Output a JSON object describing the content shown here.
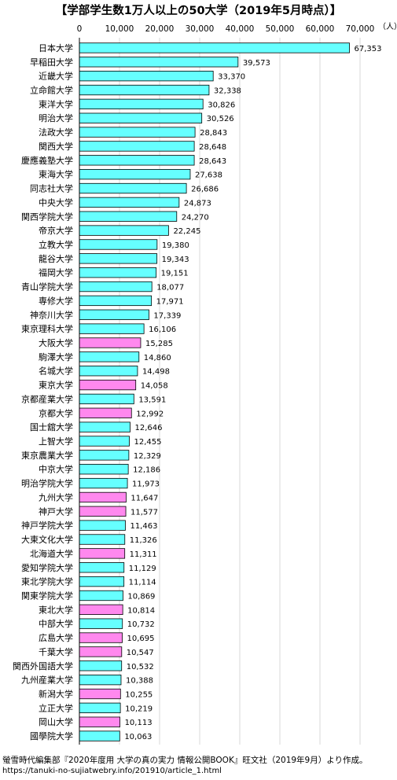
{
  "title": "【学部学生数1万人以上の50大学（2019年5月時点）】",
  "unit_label": "（人）",
  "source_note": "螢雪時代編集部『2020年度用 大学の真の実力 情報公開BOOK』旺文社（2019年9月）より作成。",
  "url": "https://tanuki-no-sujiatwebry.info/201910/article_1.html",
  "colors": {
    "private": "#66FFFF",
    "national": "#FF88EE",
    "border": "#000000",
    "grid": "#D9D9D9"
  },
  "chart_data": {
    "type": "bar",
    "orientation": "horizontal",
    "title": "【学部学生数1万人以上の50大学（2019年5月時点）】",
    "xlim": [
      0,
      70000
    ],
    "xticks": [
      0,
      10000,
      20000,
      30000,
      40000,
      50000,
      60000,
      70000
    ],
    "xtick_labels": [
      "0",
      "10,000",
      "20,000",
      "30,000",
      "40,000",
      "50,000",
      "60,000",
      "70,000"
    ],
    "categories": [
      "日本大学",
      "早稲田大学",
      "近畿大学",
      "立命館大学",
      "東洋大学",
      "明治大学",
      "法政大学",
      "関西大学",
      "慶應義塾大学",
      "東海大学",
      "同志社大学",
      "中央大学",
      "関西学院大学",
      "帝京大学",
      "立教大学",
      "龍谷大学",
      "福岡大学",
      "青山学院大学",
      "専修大学",
      "神奈川大学",
      "東京理科大学",
      "大阪大学",
      "駒澤大学",
      "名城大学",
      "東京大学",
      "京都産業大学",
      "京都大学",
      "国士舘大学",
      "上智大学",
      "東京農業大学",
      "中京大学",
      "明治学院大学",
      "九州大学",
      "神戸大学",
      "神戸学院大学",
      "大東文化大学",
      "北海道大学",
      "愛知学院大学",
      "東北学院大学",
      "関東学院大学",
      "東北大学",
      "中部大学",
      "広島大学",
      "千葉大学",
      "関西外国語大学",
      "九州産業大学",
      "新潟大学",
      "立正大学",
      "岡山大学",
      "國學院大学"
    ],
    "values": [
      67353,
      39573,
      33370,
      32338,
      30826,
      30526,
      28843,
      28648,
      28643,
      27638,
      26686,
      24873,
      24270,
      22245,
      19380,
      19343,
      19151,
      18077,
      17971,
      17339,
      16106,
      15285,
      14860,
      14498,
      14058,
      13591,
      12992,
      12646,
      12455,
      12329,
      12186,
      11973,
      11647,
      11577,
      11463,
      11326,
      11311,
      11129,
      11114,
      10869,
      10814,
      10732,
      10695,
      10547,
      10532,
      10388,
      10255,
      10219,
      10113,
      10063
    ],
    "value_labels": [
      "67,353",
      "39,573",
      "33,370",
      "32,338",
      "30,826",
      "30,526",
      "28,843",
      "28,648",
      "28,643",
      "27,638",
      "26,686",
      "24,873",
      "24,270",
      "22,245",
      "19,380",
      "19,343",
      "19,151",
      "18,077",
      "17,971",
      "17,339",
      "16,106",
      "15,285",
      "14,860",
      "14,498",
      "14,058",
      "13,591",
      "12,992",
      "12,646",
      "12,455",
      "12,329",
      "12,186",
      "11,973",
      "11,647",
      "11,577",
      "11,463",
      "11,326",
      "11,311",
      "11,129",
      "11,114",
      "10,869",
      "10,814",
      "10,732",
      "10,695",
      "10,547",
      "10,532",
      "10,388",
      "10,255",
      "10,219",
      "10,113",
      "10,063"
    ],
    "bar_color_group": [
      "private",
      "private",
      "private",
      "private",
      "private",
      "private",
      "private",
      "private",
      "private",
      "private",
      "private",
      "private",
      "private",
      "private",
      "private",
      "private",
      "private",
      "private",
      "private",
      "private",
      "private",
      "national",
      "private",
      "private",
      "national",
      "private",
      "national",
      "private",
      "private",
      "private",
      "private",
      "private",
      "national",
      "national",
      "private",
      "private",
      "national",
      "private",
      "private",
      "private",
      "national",
      "private",
      "national",
      "national",
      "private",
      "private",
      "national",
      "private",
      "national",
      "private"
    ],
    "grid": true,
    "legend": "none"
  }
}
